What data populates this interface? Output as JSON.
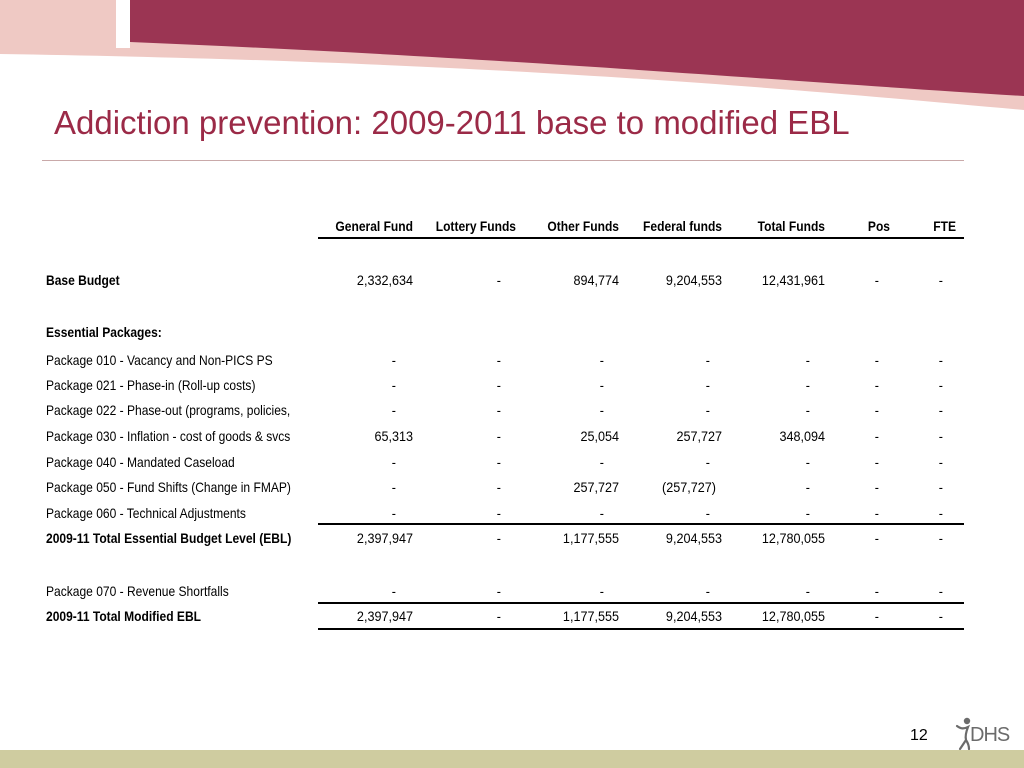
{
  "slide": {
    "title": "Addiction prevention: 2009-2011 base to modified EBL",
    "page_number": "12",
    "logo_text": "DHS"
  },
  "table": {
    "columns": [
      "General Fund",
      "Lottery Funds",
      "Other Funds",
      "Federal funds",
      "Total Funds",
      "Pos",
      "FTE"
    ],
    "rows": [
      {
        "label": "Base Budget",
        "bold": true,
        "values": [
          "2,332,634",
          "-",
          "894,774",
          "9,204,553",
          "12,431,961",
          "-",
          "-"
        ]
      },
      {
        "label": "Essential Packages:",
        "bold": true,
        "values": []
      },
      {
        "label": "Package 010 - Vacancy and Non-PICS PS",
        "bold": false,
        "values": [
          "-",
          "-",
          "-",
          "-",
          "-",
          "-",
          "-"
        ]
      },
      {
        "label": "Package 021 - Phase-in (Roll-up costs)",
        "bold": false,
        "values": [
          "-",
          "-",
          "-",
          "-",
          "-",
          "-",
          "-"
        ]
      },
      {
        "label": "Package 022 - Phase-out (programs, policies,",
        "bold": false,
        "values": [
          "-",
          "-",
          "-",
          "-",
          "-",
          "-",
          "-"
        ]
      },
      {
        "label": "Package 030 - Inflation - cost of goods & svcs",
        "bold": false,
        "values": [
          "65,313",
          "-",
          "25,054",
          "257,727",
          "348,094",
          "-",
          "-"
        ]
      },
      {
        "label": "Package 040 - Mandated Caseload",
        "bold": false,
        "values": [
          "-",
          "-",
          "-",
          "-",
          "-",
          "-",
          "-"
        ]
      },
      {
        "label": "Package 050 - Fund Shifts (Change in FMAP)",
        "bold": false,
        "values": [
          "-",
          "-",
          "257,727",
          "(257,727)",
          "-",
          "-",
          "-"
        ]
      },
      {
        "label": "Package 060 - Technical Adjustments",
        "bold": false,
        "values": [
          "-",
          "-",
          "-",
          "-",
          "-",
          "-",
          "-"
        ]
      },
      {
        "label": "2009-11 Total Essential Budget Level (EBL)",
        "bold": true,
        "values": [
          "2,397,947",
          "-",
          "1,177,555",
          "9,204,553",
          "12,780,055",
          "-",
          "-"
        ]
      },
      {
        "label": "Package 070 - Revenue Shortfalls",
        "bold": false,
        "values": [
          "-",
          "-",
          "-",
          "-",
          "-",
          "-",
          "-"
        ]
      },
      {
        "label": "2009-11 Total Modified EBL",
        "bold": true,
        "values": [
          "2,397,947",
          "-",
          "1,177,555",
          "9,204,553",
          "12,780,055",
          "-",
          "-"
        ]
      }
    ]
  },
  "colors": {
    "header_maroon": "#9b3553",
    "header_pink": "#efc9c4",
    "title": "#9b2a47",
    "footer_band": "#cfcca0"
  },
  "icons": {
    "logo": "person-figure-icon"
  }
}
